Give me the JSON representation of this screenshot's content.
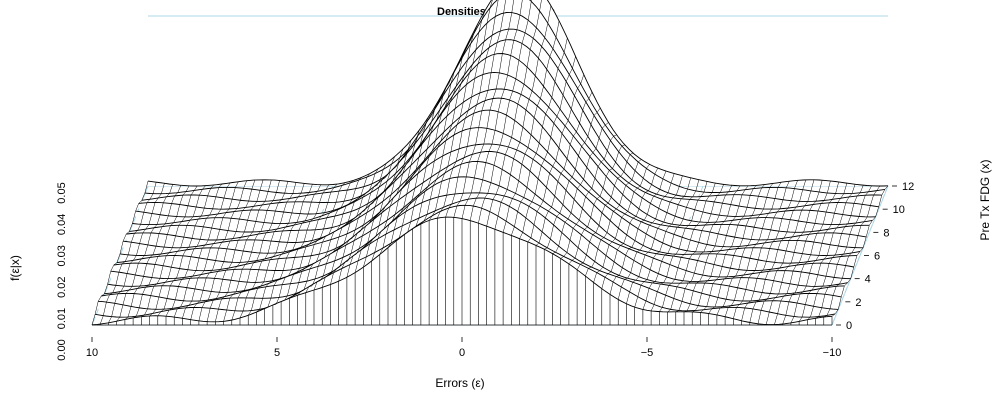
{
  "chart_data": {
    "type": "surface",
    "title": "Densities of the Errors",
    "xlabel": "Errors (ε)",
    "ylabel": "Pre Tx FDG (x)",
    "zlabel": "f(ε|x)",
    "x_ticks": [
      "10",
      "5",
      "0",
      "−5",
      "−10"
    ],
    "x_tick_values": [
      10,
      5,
      0,
      -5,
      -10
    ],
    "y_ticks": [
      "0",
      "2",
      "4",
      "6",
      "8",
      "10",
      "12"
    ],
    "y_tick_values": [
      0,
      2,
      4,
      6,
      8,
      10,
      12
    ],
    "z_ticks": [
      "0.00",
      "0.01",
      "0.02",
      "0.03",
      "0.04",
      "0.05"
    ],
    "z_tick_values": [
      0,
      0.01,
      0.02,
      0.03,
      0.04,
      0.05
    ],
    "xlim": [
      10,
      -10
    ],
    "ylim": [
      0,
      12
    ],
    "zlim": [
      0,
      0.05
    ],
    "peak_location_error": 0,
    "peak_density_front": 0.03,
    "peak_density_back": 0.06,
    "box_color": "#add8e6",
    "mesh_color": "#000000"
  }
}
